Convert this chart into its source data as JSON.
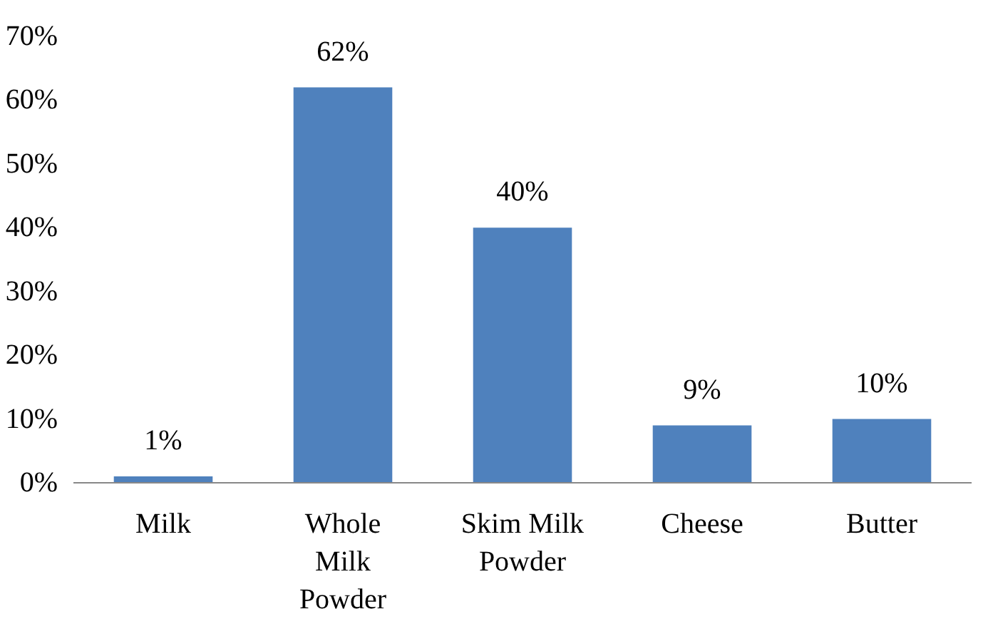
{
  "chart_data": {
    "type": "bar",
    "categories": [
      "Milk",
      "Whole Milk Powder",
      "Skim Milk Powder",
      "Cheese",
      "Butter"
    ],
    "values": [
      1,
      62,
      40,
      9,
      10
    ],
    "value_labels": [
      "1%",
      "62%",
      "40%",
      "9%",
      "10%"
    ],
    "color": "#4f81bd",
    "ylim": [
      0,
      70
    ],
    "yticks": [
      {
        "value": 0,
        "label": "0%"
      },
      {
        "value": 10,
        "label": "10%"
      },
      {
        "value": 20,
        "label": "20%"
      },
      {
        "value": 30,
        "label": "30%"
      },
      {
        "value": 40,
        "label": "40%"
      },
      {
        "value": 50,
        "label": "50%"
      },
      {
        "value": 60,
        "label": "60%"
      },
      {
        "value": 70,
        "label": "70%"
      }
    ],
    "grid": false
  }
}
